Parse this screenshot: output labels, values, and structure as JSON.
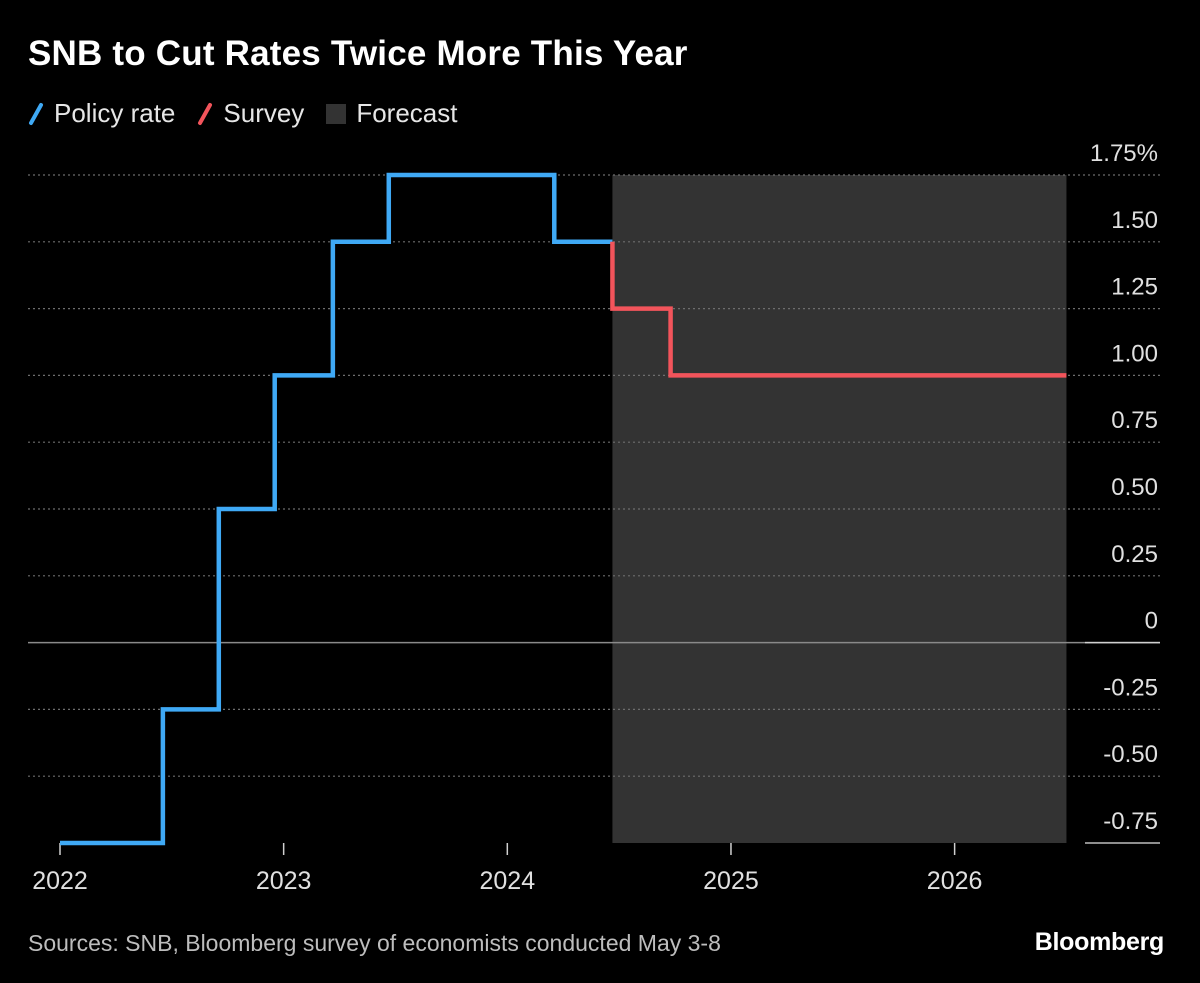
{
  "chart_data": {
    "type": "line",
    "title": "SNB to Cut Rates Twice More This Year",
    "source": "Sources: SNB, Bloomberg survey of economists conducted May 3-8",
    "brand": "Bloomberg",
    "legend": [
      {
        "label": "Policy rate",
        "color": "#3fa9f5",
        "kind": "line"
      },
      {
        "label": "Survey",
        "color": "#f2545b",
        "kind": "line"
      },
      {
        "label": "Forecast",
        "color": "#333333",
        "kind": "box"
      }
    ],
    "x_ticks": [
      {
        "label": "2022",
        "value": 2022.0
      },
      {
        "label": "2023",
        "value": 2023.0
      },
      {
        "label": "2024",
        "value": 2024.0
      },
      {
        "label": "2025",
        "value": 2025.0
      },
      {
        "label": "2026",
        "value": 2026.0
      }
    ],
    "y_ticks": [
      {
        "label": "1.75%",
        "value": 1.75
      },
      {
        "label": "1.50",
        "value": 1.5
      },
      {
        "label": "1.25",
        "value": 1.25
      },
      {
        "label": "1.00",
        "value": 1.0
      },
      {
        "label": "0.75",
        "value": 0.75
      },
      {
        "label": "0.50",
        "value": 0.5
      },
      {
        "label": "0.25",
        "value": 0.25
      },
      {
        "label": "0",
        "value": 0
      },
      {
        "label": "-0.25",
        "value": -0.25
      },
      {
        "label": "-0.50",
        "value": -0.5
      },
      {
        "label": "-0.75",
        "value": -0.75
      }
    ],
    "xlim": [
      2022.0,
      2026.65
    ],
    "ylim": [
      -0.75,
      1.75
    ],
    "y_axis_position": "right",
    "grid": "horizontal-dotted",
    "legend_placement": "top-left",
    "forecast_range": [
      2024.47,
      2026.5
    ],
    "series": [
      {
        "name": "Policy rate",
        "color": "#3fa9f5",
        "step": true,
        "points": [
          [
            2022.0,
            -0.75
          ],
          [
            2022.46,
            -0.25
          ],
          [
            2022.71,
            0.5
          ],
          [
            2022.96,
            1.0
          ],
          [
            2023.22,
            1.5
          ],
          [
            2023.47,
            1.75
          ],
          [
            2024.21,
            1.5
          ],
          [
            2024.47,
            1.5
          ]
        ]
      },
      {
        "name": "Survey",
        "color": "#f2545b",
        "step": true,
        "points": [
          [
            2024.47,
            1.5
          ],
          [
            2024.47,
            1.25
          ],
          [
            2024.73,
            1.0
          ],
          [
            2026.5,
            1.0
          ]
        ]
      }
    ]
  }
}
